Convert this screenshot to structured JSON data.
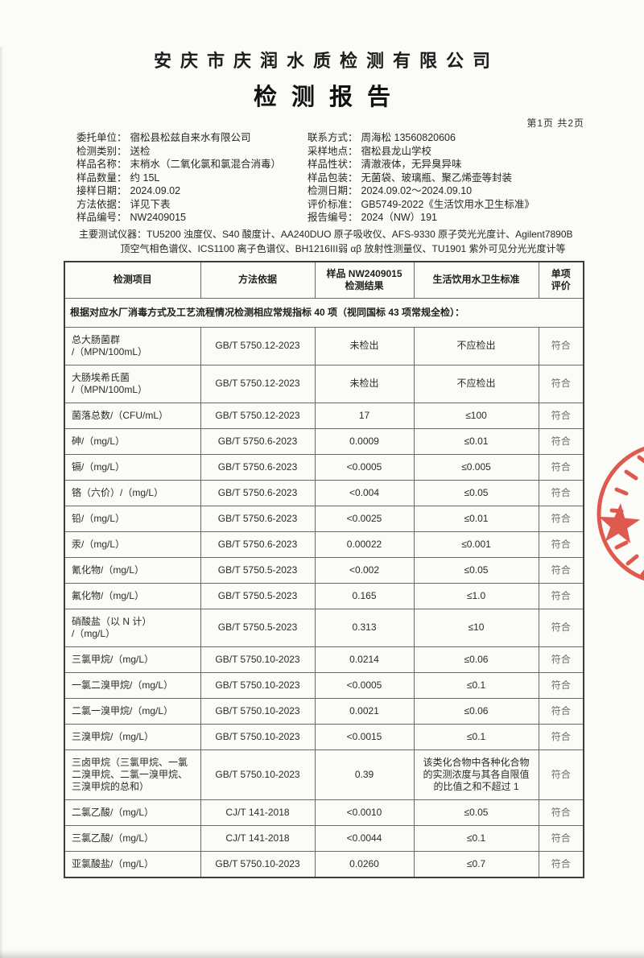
{
  "header": {
    "company": "安庆市庆润水质检测有限公司",
    "title": "检测报告",
    "page_indicator": "第1页 共2页"
  },
  "info": {
    "rows": [
      {
        "l_label": "委托单位：",
        "l_value": "宿松县松兹自来水有限公司",
        "r_label": "联系方式：",
        "r_value": "周海松 13560820606"
      },
      {
        "l_label": "检测类别：",
        "l_value": "送检",
        "r_label": "采样地点：",
        "r_value": "宿松县龙山学校"
      },
      {
        "l_label": "样品名称：",
        "l_value": "末梢水（二氧化氯和氯混合消毒）",
        "r_label": "样品性状：",
        "r_value": "清澈液体，无异臭异味"
      },
      {
        "l_label": "样品数量：",
        "l_value": "约 15L",
        "r_label": "样品包装：",
        "r_value": "无菌袋、玻璃瓶、聚乙烯壶等封装"
      },
      {
        "l_label": "接样日期：",
        "l_value": "2024.09.02",
        "r_label": "检测日期：",
        "r_value": "2024.09.02～2024.09.10"
      },
      {
        "l_label": "方法依据：",
        "l_value": "详见下表",
        "r_label": "评价标准：",
        "r_value": "GB5749-2022《生活饮用水卫生标准》"
      },
      {
        "l_label": "样品编号：",
        "l_value": "NW2409015",
        "r_label": "报告编号：",
        "r_value": "2024（NW）191"
      }
    ]
  },
  "instruments": {
    "line1": "主要测试仪器：TU5200 浊度仪、S40 酸度计、AA240DUO 原子吸收仪、AFS-9330 原子荧光光度计、Agilent7890B",
    "line2": "顶空气相色谱仪、ICS1100 离子色谱仪、BH1216III弱 αβ 放射性测量仪、TU1901 紫外可见分光光度计等"
  },
  "table": {
    "headers": [
      "检测项目",
      "方法依据",
      "样品 NW2409015\n检测结果",
      "生活饮用水卫生标准",
      "单项\n评价"
    ],
    "note": "根据对应水厂消毒方式及工艺流程情况检测相应常规指标 40 项（视同国标 43 项常规全检）：",
    "rows": [
      {
        "item": "总大肠菌群\n/（MPN/100mL）",
        "method": "GB/T 5750.12-2023",
        "result": "未检出",
        "standard": "不应检出",
        "evaluation": "符合"
      },
      {
        "item": "大肠埃希氏菌\n/（MPN/100mL）",
        "method": "GB/T 5750.12-2023",
        "result": "未检出",
        "standard": "不应检出",
        "evaluation": "符合"
      },
      {
        "item": "菌落总数/（CFU/mL）",
        "method": "GB/T 5750.12-2023",
        "result": "17",
        "standard": "≤100",
        "evaluation": "符合"
      },
      {
        "item": "砷/（mg/L）",
        "method": "GB/T 5750.6-2023",
        "result": "0.0009",
        "standard": "≤0.01",
        "evaluation": "符合"
      },
      {
        "item": "镉/（mg/L）",
        "method": "GB/T 5750.6-2023",
        "result": "<0.0005",
        "standard": "≤0.005",
        "evaluation": "符合"
      },
      {
        "item": "铬（六价）/（mg/L）",
        "method": "GB/T 5750.6-2023",
        "result": "<0.004",
        "standard": "≤0.05",
        "evaluation": "符合"
      },
      {
        "item": "铅/（mg/L）",
        "method": "GB/T 5750.6-2023",
        "result": "<0.0025",
        "standard": "≤0.01",
        "evaluation": "符合"
      },
      {
        "item": "汞/（mg/L）",
        "method": "GB/T 5750.6-2023",
        "result": "0.00022",
        "standard": "≤0.001",
        "evaluation": "符合"
      },
      {
        "item": "氰化物/（mg/L）",
        "method": "GB/T 5750.5-2023",
        "result": "<0.002",
        "standard": "≤0.05",
        "evaluation": "符合"
      },
      {
        "item": "氟化物/（mg/L）",
        "method": "GB/T 5750.5-2023",
        "result": "0.165",
        "standard": "≤1.0",
        "evaluation": "符合"
      },
      {
        "item": "硝酸盐（以 N 计）\n/（mg/L）",
        "method": "GB/T 5750.5-2023",
        "result": "0.313",
        "standard": "≤10",
        "evaluation": "符合"
      },
      {
        "item": "三氯甲烷/（mg/L）",
        "method": "GB/T 5750.10-2023",
        "result": "0.0214",
        "standard": "≤0.06",
        "evaluation": "符合"
      },
      {
        "item": "一氯二溴甲烷/（mg/L）",
        "method": "GB/T 5750.10-2023",
        "result": "<0.0005",
        "standard": "≤0.1",
        "evaluation": "符合"
      },
      {
        "item": "二氯一溴甲烷/（mg/L）",
        "method": "GB/T 5750.10-2023",
        "result": "0.0021",
        "standard": "≤0.06",
        "evaluation": "符合"
      },
      {
        "item": "三溴甲烷/（mg/L）",
        "method": "GB/T 5750.10-2023",
        "result": "<0.0015",
        "standard": "≤0.1",
        "evaluation": "符合"
      },
      {
        "item": "三卤甲烷（三氯甲烷、一氯\n二溴甲烷、二氯一溴甲烷、\n三溴甲烷的总和）",
        "method": "GB/T 5750.10-2023",
        "result": "0.39",
        "standard": "该类化合物中各种化合物\n的实测浓度与其各自限值\n的比值之和不超过 1",
        "evaluation": "符合"
      },
      {
        "item": "二氯乙酸/（mg/L）",
        "method": "CJ/T 141-2018",
        "result": "<0.0010",
        "standard": "≤0.05",
        "evaluation": "符合"
      },
      {
        "item": "三氯乙酸/（mg/L）",
        "method": "CJ/T 141-2018",
        "result": "<0.0044",
        "standard": "≤0.1",
        "evaluation": "符合"
      },
      {
        "item": "亚氯酸盐/（mg/L）",
        "method": "GB/T 5750.10-2023",
        "result": "0.0260",
        "standard": "≤0.7",
        "evaluation": "符合"
      }
    ]
  },
  "stamp": {
    "icon": "official-red-seal-stamp",
    "color": "#d8372b"
  }
}
